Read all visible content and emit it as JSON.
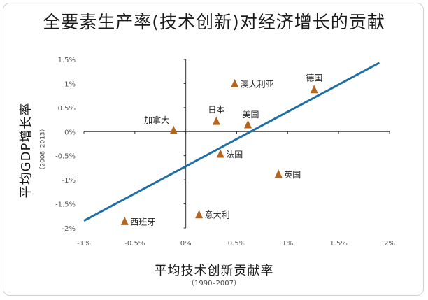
{
  "chart_data": {
    "type": "scatter",
    "title": "全要素生产率(技术创新)对经济增长的贡献",
    "xlabel": "平均技术创新贡献率",
    "xlabel_sub": "（1990–2007）",
    "ylabel": "平均GDP增长率",
    "ylabel_sub": "（2008–2013）",
    "xlim": [
      -1.0,
      2.0
    ],
    "ylim": [
      -2.0,
      1.5
    ],
    "xticks": [
      -1.0,
      -0.5,
      0,
      0.5,
      1.0,
      1.5,
      2.0
    ],
    "xtick_labels": [
      "-1%",
      "-0.5%",
      "0%",
      "0.5%",
      "1%",
      "1.5%",
      "2%"
    ],
    "yticks": [
      1.5,
      1.0,
      0.5,
      0,
      -0.5,
      -1.0,
      -1.5,
      -2.0
    ],
    "ytick_labels": [
      "1.5%",
      "1%",
      "0.5%",
      "0%",
      "-0.5%",
      "-1%",
      "-1.5%",
      "-2%"
    ],
    "grid": false,
    "marker_color": "#b5651d",
    "line_color": "#1f6fa5",
    "points": [
      {
        "label": "德国",
        "x": 1.26,
        "y": 0.88
      },
      {
        "label": "澳大利亚",
        "x": 0.48,
        "y": 1.0
      },
      {
        "label": "日本",
        "x": 0.3,
        "y": 0.22
      },
      {
        "label": "美国",
        "x": 0.61,
        "y": 0.15
      },
      {
        "label": "加拿大",
        "x": -0.12,
        "y": 0.03
      },
      {
        "label": "法国",
        "x": 0.34,
        "y": -0.46
      },
      {
        "label": "英国",
        "x": 0.91,
        "y": -0.88
      },
      {
        "label": "意大利",
        "x": 0.13,
        "y": -1.72
      },
      {
        "label": "西班牙",
        "x": -0.6,
        "y": -1.86
      }
    ],
    "trend_line": {
      "x": [
        -1.0,
        1.9
      ],
      "y": [
        -1.85,
        1.43
      ]
    }
  }
}
